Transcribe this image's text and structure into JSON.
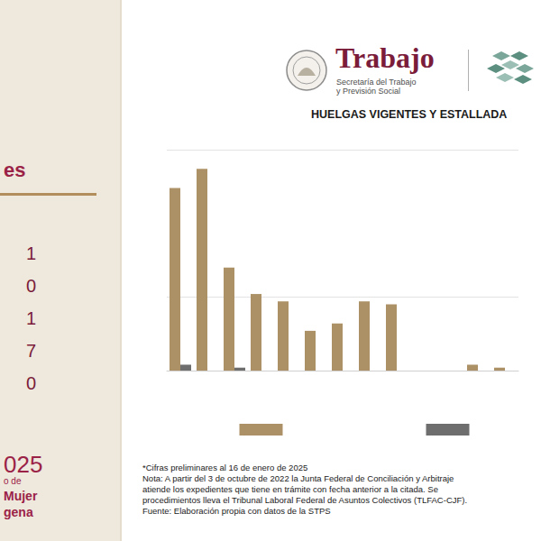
{
  "sidebar": {
    "heading": "es",
    "values": [
      1,
      0,
      1,
      7,
      0
    ],
    "footer": [
      "025",
      "o de",
      "Mujer",
      "gena"
    ]
  },
  "header": {
    "brand": "Trabajo",
    "subtitle": [
      "Secretaría del Trabajo",
      "y Previsión Social"
    ]
  },
  "chart_data": {
    "type": "bar",
    "title": "HUELGAS VIGENTES Y ESTALLADA",
    "categories": [
      null,
      null,
      null,
      null,
      null,
      null,
      null,
      null,
      null,
      null,
      null,
      null,
      null
    ],
    "series": [
      {
        "color": "#ad9166",
        "values": [
          124,
          137,
          70,
          52,
          47,
          27,
          32,
          47,
          45,
          0,
          0,
          4,
          2
        ]
      },
      {
        "color": "#6e6e6e",
        "values": [
          4,
          0,
          2,
          0,
          0,
          0,
          0,
          0,
          0,
          0,
          0,
          0,
          0
        ]
      }
    ],
    "ylim": [
      0,
      150
    ],
    "yticks": [
      0,
      50,
      150
    ],
    "grid": true,
    "tick_labels": false,
    "legend": "bottom"
  },
  "notes": [
    "*Cifras preliminares al 16 de enero de 2025",
    "Nota: A partir del 3 de octubre de 2022 la Junta Federal de Conciliación y Arbitraje",
    "atiende los expedientes que tiene en trámite con fecha anterior a la citada. Se",
    "procedimientos lleva el Tribunal Laboral Federal de Asuntos Colectivos (TLFAC-CJF).",
    "Fuente: Elaboración propia con datos de la STPS"
  ]
}
